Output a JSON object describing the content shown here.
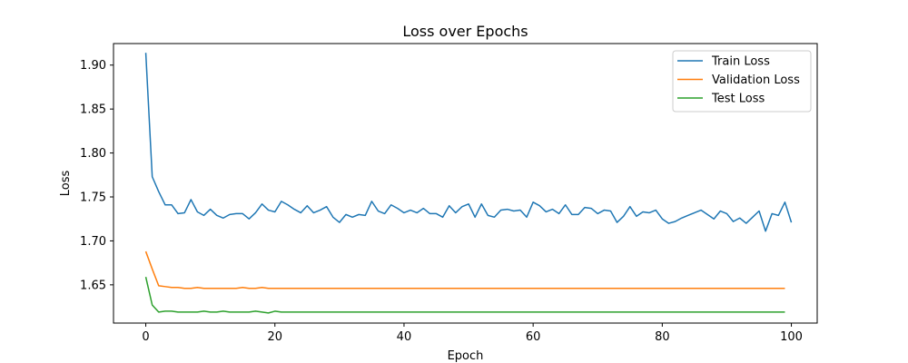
{
  "chart_data": {
    "type": "line",
    "title": "Loss over Epochs",
    "xlabel": "Epoch",
    "ylabel": "Loss",
    "xlim": [
      -5,
      104
    ],
    "ylim": [
      1.6065,
      1.9245
    ],
    "xticks": [
      0,
      20,
      40,
      60,
      80,
      100
    ],
    "yticks": [
      1.65,
      1.7,
      1.75,
      1.8,
      1.85,
      1.9
    ],
    "ytick_labels": [
      "1.65",
      "1.70",
      "1.75",
      "1.80",
      "1.85",
      "1.90"
    ],
    "legend_position": "top-right",
    "grid": false,
    "series": [
      {
        "name": "Train Loss",
        "color": "#1f77b4",
        "values": [
          1.914,
          1.773,
          1.756,
          1.741,
          1.741,
          1.731,
          1.732,
          1.747,
          1.733,
          1.729,
          1.736,
          1.729,
          1.726,
          1.73,
          1.731,
          1.731,
          1.725,
          1.732,
          1.742,
          1.735,
          1.733,
          1.745,
          1.741,
          1.736,
          1.732,
          1.74,
          1.732,
          1.735,
          1.739,
          1.727,
          1.721,
          1.73,
          1.727,
          1.73,
          1.729,
          1.745,
          1.734,
          1.731,
          1.741,
          1.737,
          1.732,
          1.735,
          1.732,
          1.737,
          1.731,
          1.731,
          1.727,
          1.74,
          1.732,
          1.739,
          1.742,
          1.727,
          1.742,
          1.729,
          1.727,
          1.735,
          1.736,
          1.734,
          1.735,
          1.727,
          1.744,
          1.74,
          1.733,
          1.736,
          1.731,
          1.741,
          1.73,
          1.73,
          1.738,
          1.737,
          1.731,
          1.735,
          1.734,
          1.721,
          1.728,
          1.739,
          1.728,
          1.733,
          1.732,
          1.735,
          1.725,
          1.72,
          1.722,
          1.726,
          1.729,
          1.732,
          1.735,
          1.73,
          1.725,
          1.734,
          1.731,
          1.722,
          1.726,
          1.72,
          1.727,
          1.734,
          1.711,
          1.731,
          1.729,
          1.744,
          1.721
        ]
      },
      {
        "name": "Validation Loss",
        "color": "#ff7f0e",
        "values": [
          1.688,
          1.668,
          1.649,
          1.648,
          1.647,
          1.647,
          1.646,
          1.646,
          1.647,
          1.646,
          1.646,
          1.646,
          1.646,
          1.646,
          1.646,
          1.647,
          1.646,
          1.646,
          1.647,
          1.646,
          1.646,
          1.646,
          1.646,
          1.646,
          1.646,
          1.646,
          1.646,
          1.646,
          1.646,
          1.646,
          1.646,
          1.646,
          1.646,
          1.646,
          1.646,
          1.646,
          1.646,
          1.646,
          1.646,
          1.646,
          1.646,
          1.646,
          1.646,
          1.646,
          1.646,
          1.646,
          1.646,
          1.646,
          1.646,
          1.646,
          1.646,
          1.646,
          1.646,
          1.646,
          1.646,
          1.646,
          1.646,
          1.646,
          1.646,
          1.646,
          1.646,
          1.646,
          1.646,
          1.646,
          1.646,
          1.646,
          1.646,
          1.646,
          1.646,
          1.646,
          1.646,
          1.646,
          1.646,
          1.646,
          1.646,
          1.646,
          1.646,
          1.646,
          1.646,
          1.646,
          1.646,
          1.646,
          1.646,
          1.646,
          1.646,
          1.646,
          1.646,
          1.646,
          1.646,
          1.646,
          1.646,
          1.646,
          1.646,
          1.646,
          1.646,
          1.646,
          1.646,
          1.646,
          1.646,
          1.646
        ]
      },
      {
        "name": "Test Loss",
        "color": "#2ca02c",
        "values": [
          1.659,
          1.627,
          1.619,
          1.62,
          1.62,
          1.619,
          1.619,
          1.619,
          1.619,
          1.62,
          1.619,
          1.619,
          1.62,
          1.619,
          1.619,
          1.619,
          1.619,
          1.62,
          1.619,
          1.618,
          1.62,
          1.619,
          1.619,
          1.619,
          1.619,
          1.619,
          1.619,
          1.619,
          1.619,
          1.619,
          1.619,
          1.619,
          1.619,
          1.619,
          1.619,
          1.619,
          1.619,
          1.619,
          1.619,
          1.619,
          1.619,
          1.619,
          1.619,
          1.619,
          1.619,
          1.619,
          1.619,
          1.619,
          1.619,
          1.619,
          1.619,
          1.619,
          1.619,
          1.619,
          1.619,
          1.619,
          1.619,
          1.619,
          1.619,
          1.619,
          1.619,
          1.619,
          1.619,
          1.619,
          1.619,
          1.619,
          1.619,
          1.619,
          1.619,
          1.619,
          1.619,
          1.619,
          1.619,
          1.619,
          1.619,
          1.619,
          1.619,
          1.619,
          1.619,
          1.619,
          1.619,
          1.619,
          1.619,
          1.619,
          1.619,
          1.619,
          1.619,
          1.619,
          1.619,
          1.619,
          1.619,
          1.619,
          1.619,
          1.619,
          1.619,
          1.619,
          1.619,
          1.619,
          1.619,
          1.619
        ]
      }
    ]
  }
}
